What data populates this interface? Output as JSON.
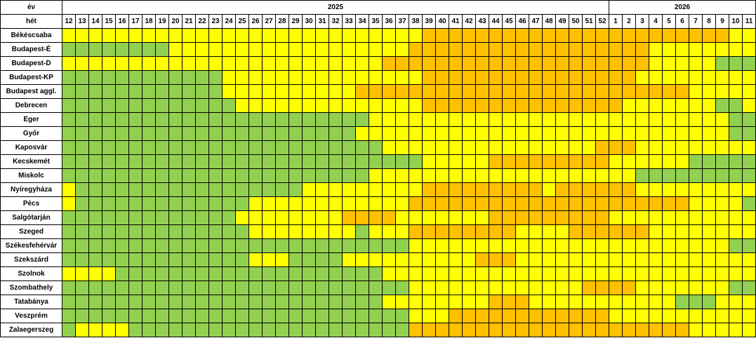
{
  "table": {
    "year_label": "év",
    "week_label": "hét",
    "years": [
      "2025",
      "2026"
    ],
    "weeks": [
      12,
      13,
      14,
      15,
      16,
      17,
      18,
      19,
      20,
      21,
      22,
      23,
      24,
      25,
      26,
      27,
      28,
      29,
      30,
      31,
      32,
      33,
      34,
      35,
      36,
      37,
      38,
      39,
      40,
      41,
      42,
      43,
      44,
      45,
      46,
      47,
      48,
      49,
      50,
      51,
      52,
      1,
      2,
      3,
      4,
      5,
      6,
      7,
      8,
      9,
      10,
      11
    ],
    "colors": {
      "G": "#92d050",
      "Y": "#ffff00",
      "O": "#ffc000"
    },
    "rows": [
      {
        "name": "Békéscsaba",
        "cells": "YYYYYYYYYYYYYYYYYYYYYYYYYYYOOOOOOOOOOOOOOOOOOOOOOOYY"
      },
      {
        "name": "Budapest-É",
        "cells": "GGGGGGGGYYYYYYYYYYYYYYYYYYOOOOOOOOOOOOOOOOOOYYYYYYYY"
      },
      {
        "name": "Budapest-D",
        "cells": "YYYYYYYYYYYYYYYYYYYYYYYYOOOOOOOOOOOOOOOOOOOOYYYYYGGG"
      },
      {
        "name": "Budapest-KP",
        "cells": "GGGGGGGGGGGGYYYYYYYYYYYYYYYOOOOOOOOOOOOOOOOYYYYYYYYY"
      },
      {
        "name": "Budapest aggl.",
        "cells": "GGGGGGGGGGGGYYYYYYYYYYOOOOOOOOOOOOOOOOOOOOOOOOOYYYYY"
      },
      {
        "name": "Debrecen",
        "cells": "GGGGGGGGGGGGGYYYYYYYYYYYYYYOOOOOOOOOOOOOOOYYYYYYYGGY"
      },
      {
        "name": "Eger",
        "cells": "GGGGGGGGGGGGGGGGGGGGGGGYYYYYYYYYYYYYYYYYYYYYYYYYYYGG"
      },
      {
        "name": "Győr",
        "cells": "GGGGGGGGGGGGGGGGGGGGGGYYYYYYYYYYYYYYYYYYYYYYYYYYYYGG"
      },
      {
        "name": "Kaposvár",
        "cells": "GGGGGGGGGGGGGGGGGGGGGGGGYYYYYYYYYYYYYYYYOOOYYYYYYYYY"
      },
      {
        "name": "Kecskemét",
        "cells": "GGGGGGGGGGGGGGGGGGGGGGGGGGGYYYYYOOOOOOOOOYYYYYYGGGGG"
      },
      {
        "name": "Miskolc",
        "cells": "GGGGGGGGGGGGGGGGGGGGGGGYYYYYYYYYYYYYYYYYYYYGGGGGGGGG"
      },
      {
        "name": "Nyíregyháza",
        "cells": "YGGGGGGGGGGGGGGGGGYYYYYYYYYOOOOOOOOOYOOOOOOYYYYYYYYY"
      },
      {
        "name": "Pécs",
        "cells": "YGGGGGGGGGGGGGYYYYYYYYYYYYOOOOOOOOOOOOOOOOOOOOOYYYYG"
      },
      {
        "name": "Salgótarján",
        "cells": "GGGGGGGGGGGGGYYYYYYYYOOOOYYYYYYYOOOOOOOOOYYYYYYYYYYY"
      },
      {
        "name": "Szeged",
        "cells": "GGGGGGGGGGGGGGYYYYYYYYGYYYOOOOOOOOYYYYOOOOOOYYYYYYYY"
      },
      {
        "name": "Székesfehérvár",
        "cells": "GGGGGGGGGGGGGGGGGGGGGGGGGGYYYYYYYYYYYYYYYYYYYYYYYYGG"
      },
      {
        "name": "Szekszárd",
        "cells": "GGGGGGGGGGGGGGYYYGGGGYYYYYYYYYYOOOYYYYYYYYYYYYYYYYYY"
      },
      {
        "name": "Szolnok",
        "cells": "YYYYGGGGGGGGGGGGGGGGGGGGYYYYYYYYYYYYYYYYYYYYYYYYYYYY"
      },
      {
        "name": "Szombathely",
        "cells": "GGGGGGGGGGGGGGGGGGGGGGGGGGYYYYYYYYYYYYYOOOOYYYYYYYGG"
      },
      {
        "name": "Tatabánya",
        "cells": "GGGGGGGGGGGGGGGGGGGGGGGGYYYYYYYYOOOYYYYYYYYYYYGGGYYY"
      },
      {
        "name": "Veszprém",
        "cells": "GGGGGGGGGGGGGGGGGGGGGGGGGGYYYOOOOOOOOOOOOYYYYYYYYYYY"
      },
      {
        "name": "Zalaegerszeg",
        "cells": "GYYYYGGGGGGGGGGGGGGGGGGGGGOOOOOOOOOOOOOOOOOOOOOYYYYY"
      }
    ]
  }
}
